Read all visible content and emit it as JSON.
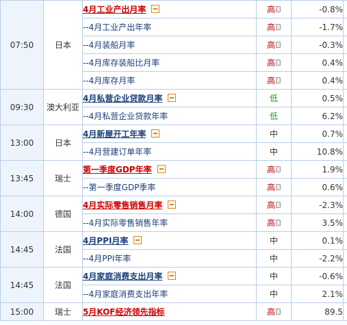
{
  "groups": [
    {
      "time": "07:50",
      "country": "日本",
      "rows": [
        {
          "event": "4月工业产出月率",
          "main": true,
          "red": true,
          "toggle": true,
          "importance": "高",
          "level": "high",
          "value": "-0.8%"
        },
        {
          "event": "--4月工业产出年率",
          "importance": "高",
          "level": "high",
          "value": "-1.7%"
        },
        {
          "event": "--4月装船月率",
          "importance": "高",
          "level": "high",
          "value": "-0.3%"
        },
        {
          "event": "--4月库存装船比月率",
          "importance": "高",
          "level": "high",
          "value": "0.4%"
        },
        {
          "event": "--4月库存月率",
          "importance": "高",
          "level": "high",
          "value": "0.4%"
        }
      ]
    },
    {
      "time": "09:30",
      "country": "澳大利亚",
      "rows": [
        {
          "event": "4月私营企业贷款月率",
          "main": true,
          "red": false,
          "toggle": true,
          "importance": "低",
          "level": "low",
          "value": "0.5%"
        },
        {
          "event": "--4月私营企业贷款年率",
          "importance": "低",
          "level": "low",
          "value": "6.2%"
        }
      ]
    },
    {
      "time": "13:00",
      "country": "日本",
      "rows": [
        {
          "event": "4月新屋开工年率",
          "main": true,
          "red": false,
          "toggle": true,
          "importance": "中",
          "level": "mid",
          "value": "0.7%"
        },
        {
          "event": "--4月营建订单年率",
          "importance": "中",
          "level": "mid",
          "value": "10.8%"
        }
      ]
    },
    {
      "time": "13:45",
      "country": "瑞士",
      "rows": [
        {
          "event": "第一季度GDP年率",
          "main": true,
          "red": true,
          "toggle": true,
          "importance": "高",
          "level": "high",
          "value": "1.9%"
        },
        {
          "event": "--第一季度GDP季率",
          "importance": "高",
          "level": "high",
          "value": "0.6%"
        }
      ]
    },
    {
      "time": "14:00",
      "country": "德国",
      "rows": [
        {
          "event": "4月实际零售销售月率",
          "main": true,
          "red": true,
          "toggle": true,
          "importance": "高",
          "level": "high",
          "value": "-2.3%"
        },
        {
          "event": "--4月实际零售销售年率",
          "importance": "高",
          "level": "high",
          "value": "3.5%"
        }
      ]
    },
    {
      "time": "14:45",
      "country": "法国",
      "rows": [
        {
          "event": "4月PPI月率",
          "main": true,
          "red": false,
          "toggle": true,
          "importance": "中",
          "level": "mid",
          "value": "0.1%"
        },
        {
          "event": "--4月PPI年率",
          "importance": "中",
          "level": "mid",
          "value": "-2.2%"
        }
      ]
    },
    {
      "time": "14:45",
      "country": "法国",
      "rows": [
        {
          "event": "4月家庭消费支出月率",
          "main": true,
          "red": false,
          "toggle": true,
          "importance": "中",
          "level": "mid",
          "value": "-0.6%"
        },
        {
          "event": "--4月家庭消费支出年率",
          "importance": "中",
          "level": "mid",
          "value": "2.1%"
        }
      ]
    },
    {
      "time": "15:00",
      "country": "瑞士",
      "rows": [
        {
          "event": "5月KOF经济领先指标",
          "main": true,
          "red": true,
          "toggle": false,
          "importance": "高",
          "level": "high",
          "value": "89.5"
        }
      ]
    }
  ]
}
